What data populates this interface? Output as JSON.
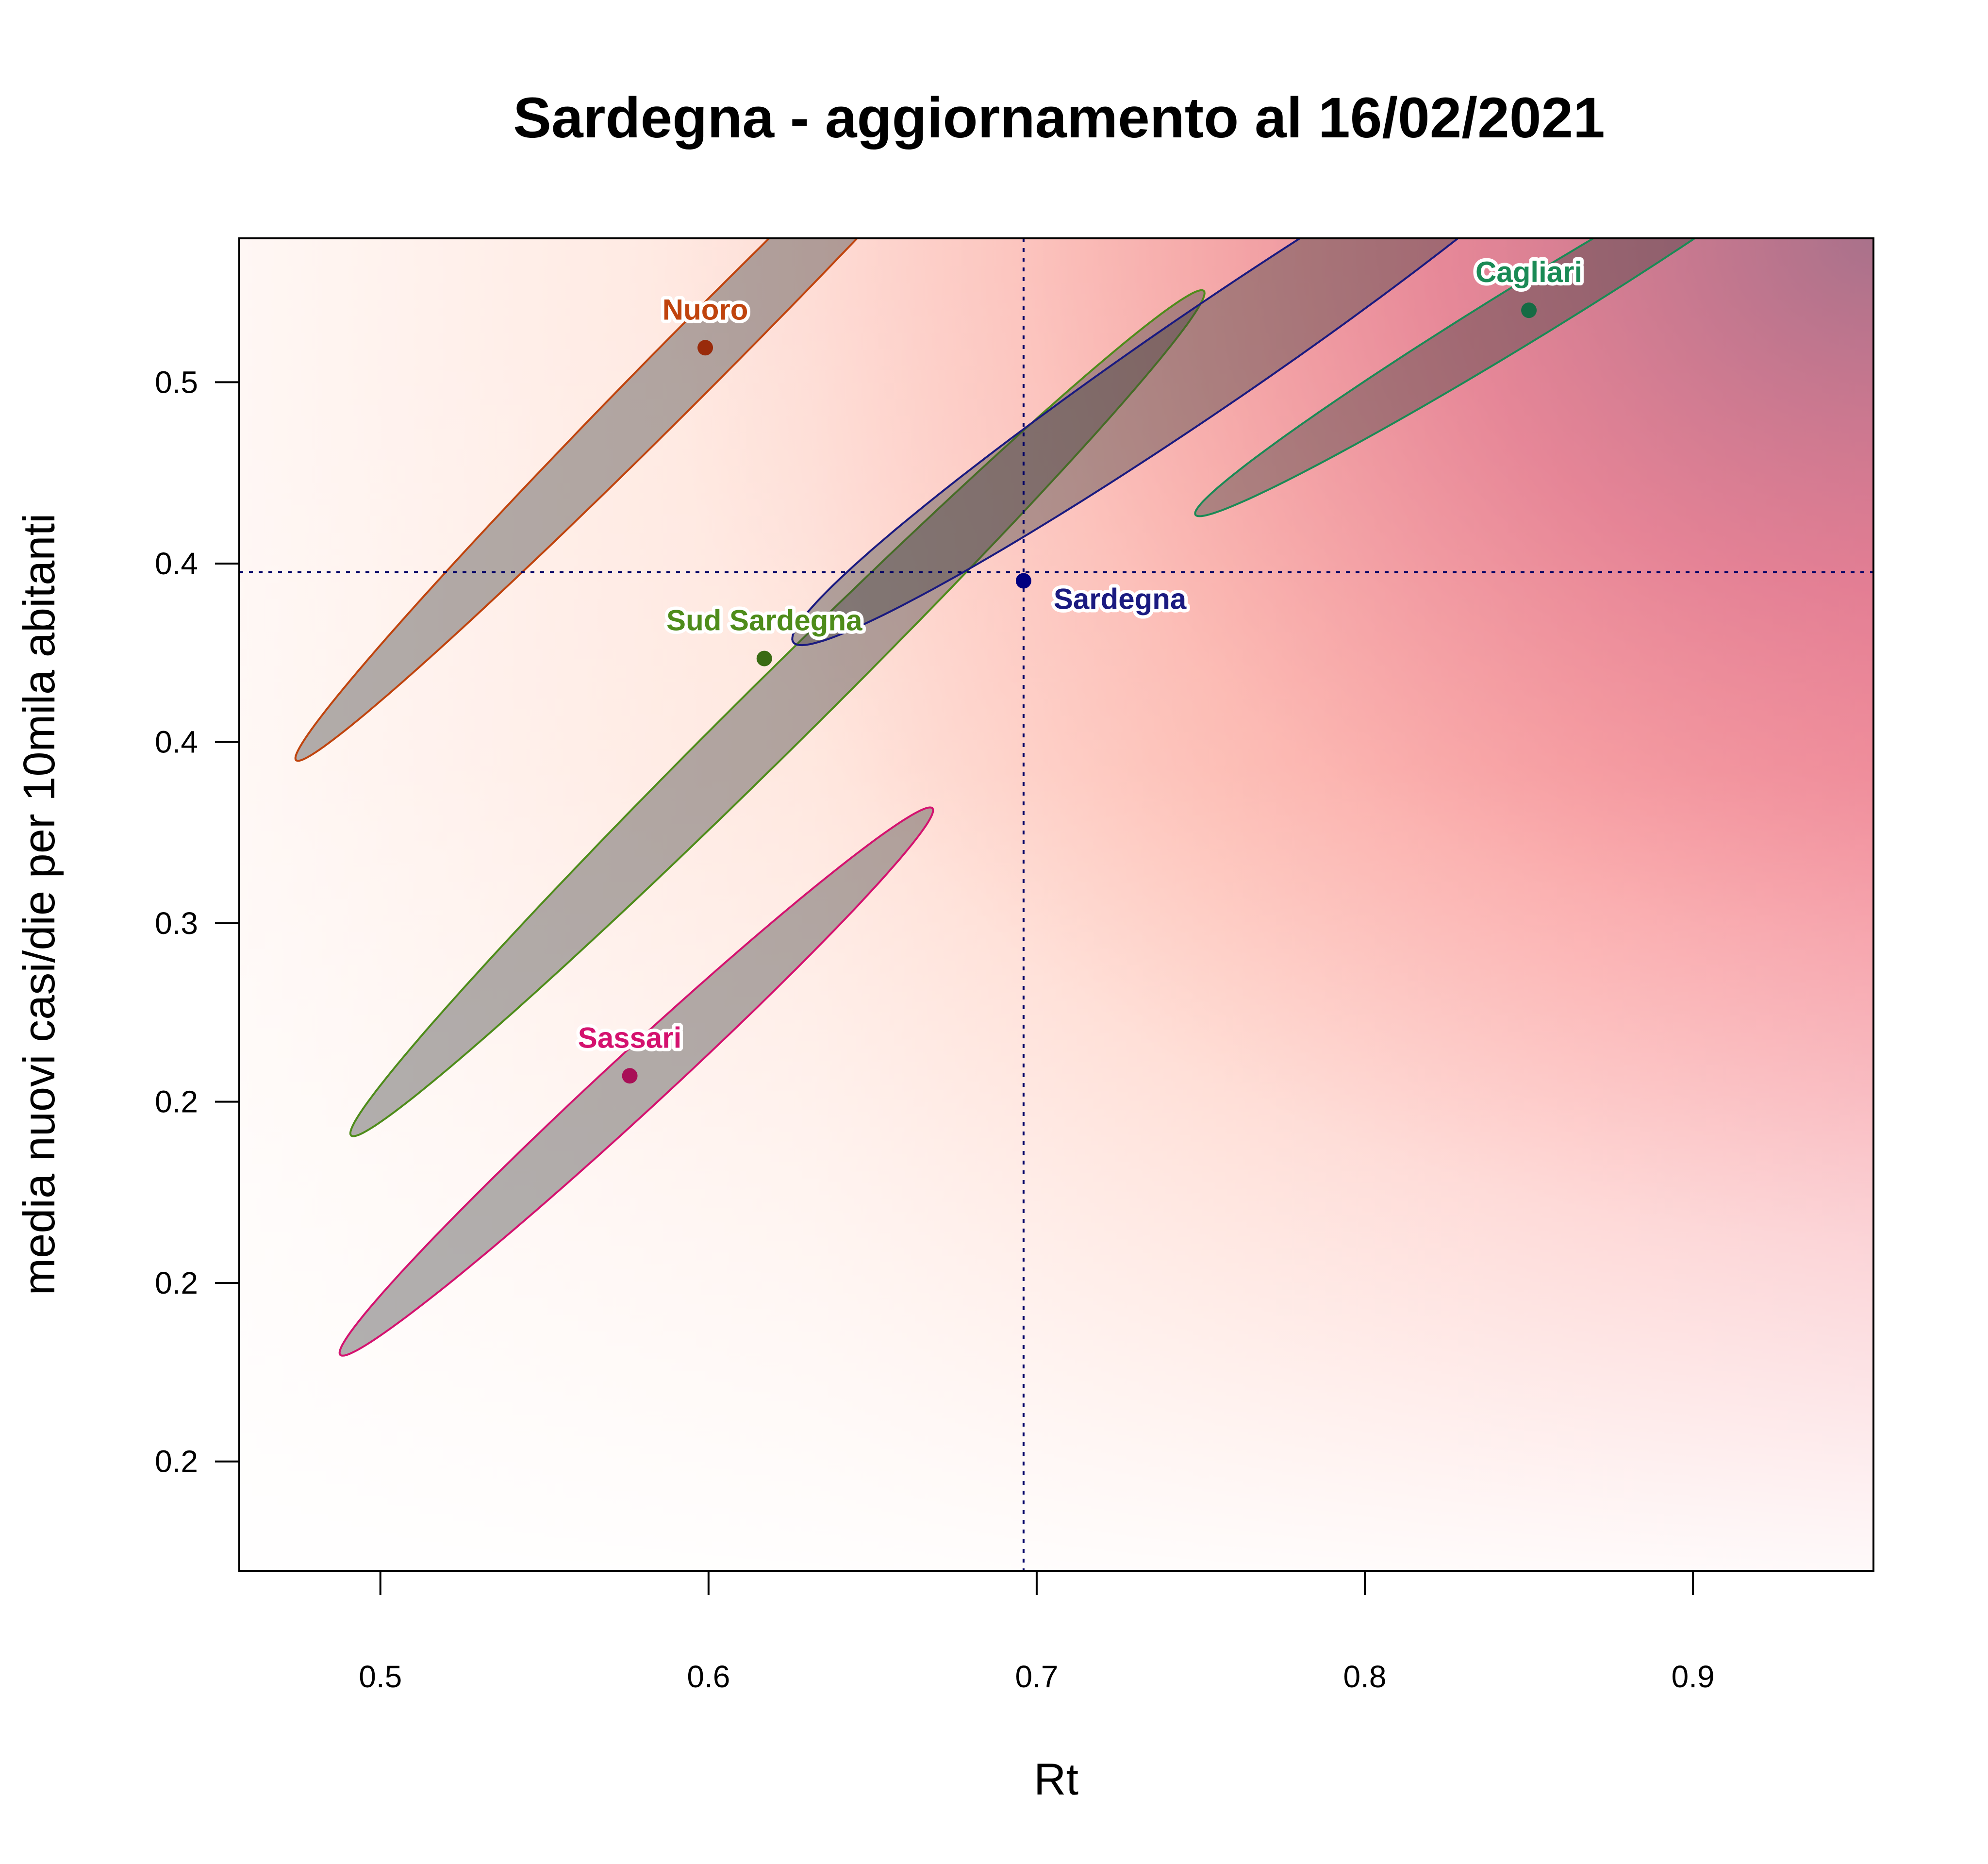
{
  "chart_data": {
    "type": "scatter",
    "title": "Sardegna - aggiornamento al 16/02/2021",
    "xlabel": "Rt",
    "ylabel": "media nuovi casi/die per 10mila abitanti",
    "xlim": [
      0.457,
      0.955
    ],
    "ylim": [
      0.12,
      0.583
    ],
    "x_ticks": [
      {
        "value": 0.5,
        "label": "0.5"
      },
      {
        "value": 0.6,
        "label": "0.6"
      },
      {
        "value": 0.7,
        "label": "0.7"
      },
      {
        "value": 0.8,
        "label": "0.8"
      },
      {
        "value": 0.9,
        "label": "0.9"
      }
    ],
    "y_ticks": [
      {
        "value": 0.158,
        "label": "0.2"
      },
      {
        "value": 0.22,
        "label": "0.2"
      },
      {
        "value": 0.283,
        "label": "0.2"
      },
      {
        "value": 0.345,
        "label": "0.3"
      },
      {
        "value": 0.408,
        "label": "0.4"
      },
      {
        "value": 0.47,
        "label": "0.4"
      },
      {
        "value": 0.533,
        "label": "0.5"
      }
    ],
    "reference_lines": {
      "x": 0.696,
      "y": 0.467,
      "color": "#000066",
      "style": "dotted"
    },
    "background": "heatmap gradient from near-white (low Rt, low incidence) through light pink to rose/mauve (high Rt, high incidence)",
    "grid": false,
    "series": [
      {
        "name": "Nuoro",
        "x": 0.599,
        "y": 0.545,
        "color": "#c0440e",
        "point_color": "#992b0b",
        "ellipse": {
          "center": [
            0.599,
            0.545
          ],
          "semi_major": 0.19,
          "semi_minor": 0.0105,
          "angle_deg": 49
        }
      },
      {
        "name": "Sud Sardegna",
        "x": 0.617,
        "y": 0.437,
        "color": "#4e8c1a",
        "point_color": "#3a6b13",
        "ellipse": {
          "center": [
            0.621,
            0.418
          ],
          "semi_major": 0.196,
          "semi_minor": 0.0115,
          "angle_deg": 48.5
        }
      },
      {
        "name": "Sassari",
        "x": 0.576,
        "y": 0.292,
        "color": "#d4126f",
        "point_color": "#a80f57",
        "ellipse": {
          "center": [
            0.578,
            0.29
          ],
          "semi_major": 0.131,
          "semi_minor": 0.0095,
          "angle_deg": 46.5
        }
      },
      {
        "name": "Cagliari",
        "x": 0.85,
        "y": 0.558,
        "color": "#1a8a55",
        "point_color": "#156b44",
        "ellipse": {
          "center": [
            0.85,
            0.558
          ],
          "semi_major": 0.124,
          "semi_minor": 0.0095,
          "angle_deg": 35
        }
      },
      {
        "name": "Sardegna",
        "x": 0.696,
        "y": 0.464,
        "color": "#1a1a80",
        "point_color": "#000080",
        "label_position": "bottom-right",
        "ellipse": {
          "center": [
            0.752,
            0.541
          ],
          "semi_major": 0.16,
          "semi_minor": 0.0165,
          "angle_deg": 38
        }
      }
    ]
  }
}
